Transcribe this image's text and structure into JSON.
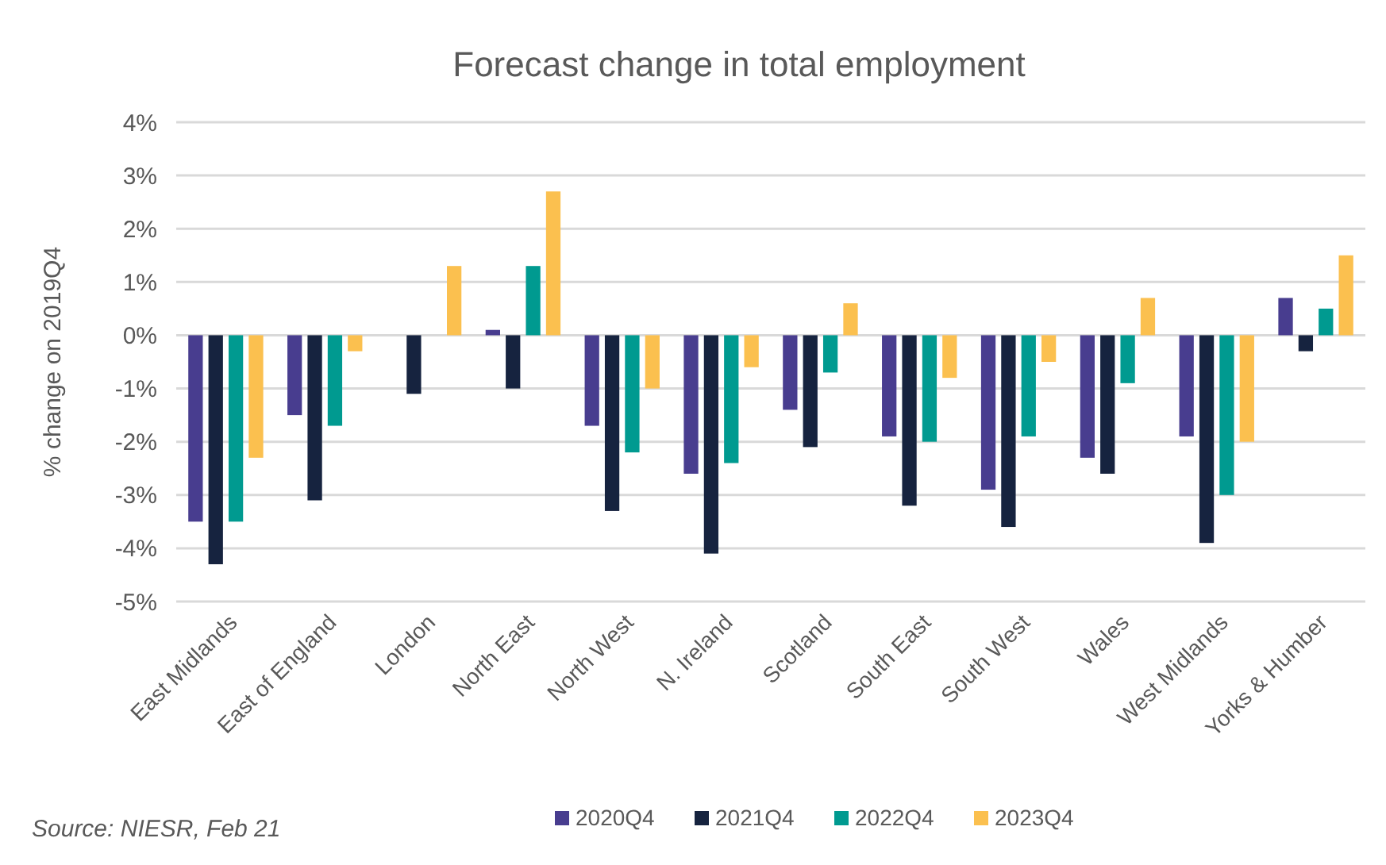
{
  "chart_data": {
    "type": "bar",
    "title": "Forecast change in total employment",
    "ylabel": "% change on 2019Q4",
    "categories": [
      "East Midlands",
      "East of England",
      "London",
      "North East",
      "North West",
      "N. Ireland",
      "Scotland",
      "South East",
      "South West",
      "Wales",
      "West Midlands",
      "Yorks & Humber"
    ],
    "series": [
      {
        "name": "2020Q4",
        "color": "#483d8f",
        "values": [
          -3.5,
          -1.5,
          0,
          0.1,
          -1.7,
          -2.6,
          -1.4,
          -1.9,
          -2.9,
          -2.3,
          -1.9,
          0.7
        ]
      },
      {
        "name": "2021Q4",
        "color": "#16233f",
        "values": [
          -4.3,
          -3.1,
          -1.1,
          -1.0,
          -3.3,
          -4.1,
          -2.1,
          -3.2,
          -3.6,
          -2.6,
          -3.9,
          -0.3
        ]
      },
      {
        "name": "2022Q4",
        "color": "#009a90",
        "values": [
          -3.5,
          -1.7,
          0,
          1.3,
          -2.2,
          -2.4,
          -0.7,
          -2.0,
          -1.9,
          -0.9,
          -3.0,
          0.5
        ]
      },
      {
        "name": "2023Q4",
        "color": "#fbc04f",
        "values": [
          -2.3,
          -0.3,
          1.3,
          2.7,
          -1.0,
          -0.6,
          0.6,
          -0.8,
          -0.5,
          0.7,
          -2.0,
          1.5
        ]
      }
    ],
    "ylim": [
      -5,
      4
    ],
    "yticks": [
      {
        "value": -5,
        "label": "-5%"
      },
      {
        "value": -4,
        "label": "-4%"
      },
      {
        "value": -3,
        "label": "-3%"
      },
      {
        "value": -2,
        "label": "-2%"
      },
      {
        "value": -1,
        "label": "-1%"
      },
      {
        "value": 0,
        "label": "0%"
      },
      {
        "value": 1,
        "label": "1%"
      },
      {
        "value": 2,
        "label": "2%"
      },
      {
        "value": 3,
        "label": "3%"
      },
      {
        "value": 4,
        "label": "4%"
      }
    ],
    "grid": "y",
    "legend": "bottom",
    "annotations": [
      "Source: NIESR, Feb 21"
    ]
  }
}
